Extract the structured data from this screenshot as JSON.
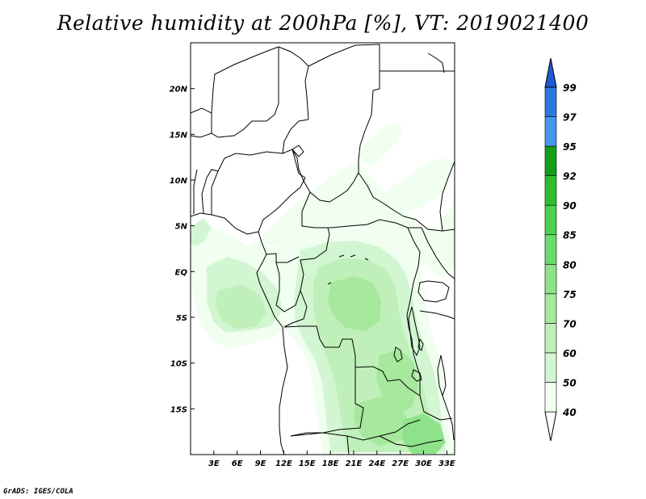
{
  "title": "Relative humidity at 200hPa [%], VT: 2019021400",
  "credit": "GrADS: IGES/COLA",
  "colors": {
    "c40": "#f0fff0",
    "c50": "#d2f5d2",
    "c60": "#bff0b9",
    "c70": "#a6e89c",
    "c75": "#8ee38a",
    "c80": "#6bdb6b",
    "c85": "#4cd150",
    "c90": "#2ebd2e",
    "c92": "#149e1a",
    "c95": "#4696ee",
    "c97": "#2a78e0",
    "c99": "#1e5ad2"
  },
  "map": {
    "lon_range": [
      0,
      34
    ],
    "lat_range": [
      -20,
      25
    ],
    "lon_ticks": [
      {
        "value": 3,
        "label": "3E"
      },
      {
        "value": 6,
        "label": "6E"
      },
      {
        "value": 9,
        "label": "9E"
      },
      {
        "value": 12,
        "label": "12E"
      },
      {
        "value": 15,
        "label": "15E"
      },
      {
        "value": 18,
        "label": "18E"
      },
      {
        "value": 21,
        "label": "21E"
      },
      {
        "value": 24,
        "label": "24E"
      },
      {
        "value": 27,
        "label": "27E"
      },
      {
        "value": 30,
        "label": "30E"
      },
      {
        "value": 33,
        "label": "33E"
      }
    ],
    "lat_ticks": [
      {
        "value": 20,
        "label": "20N"
      },
      {
        "value": 15,
        "label": "15N"
      },
      {
        "value": 10,
        "label": "10N"
      },
      {
        "value": 5,
        "label": "5N"
      },
      {
        "value": 0,
        "label": "EQ"
      },
      {
        "value": -5,
        "label": "5S"
      },
      {
        "value": -10,
        "label": "10S"
      },
      {
        "value": -15,
        "label": "15S"
      }
    ]
  },
  "colorbar": {
    "levels": [
      {
        "label": "40",
        "color": "#f0fff0"
      },
      {
        "label": "50",
        "color": "#d2f5d2"
      },
      {
        "label": "60",
        "color": "#bff0b9"
      },
      {
        "label": "70",
        "color": "#a6e89c"
      },
      {
        "label": "75",
        "color": "#8ee38a"
      },
      {
        "label": "80",
        "color": "#6bdb6b"
      },
      {
        "label": "85",
        "color": "#4cd150"
      },
      {
        "label": "90",
        "color": "#2ebd2e"
      },
      {
        "label": "92",
        "color": "#149e1a"
      },
      {
        "label": "95",
        "color": "#4696ee"
      },
      {
        "label": "97",
        "color": "#2a78e0"
      },
      {
        "label": "99",
        "color": "#1e5ad2"
      }
    ]
  }
}
